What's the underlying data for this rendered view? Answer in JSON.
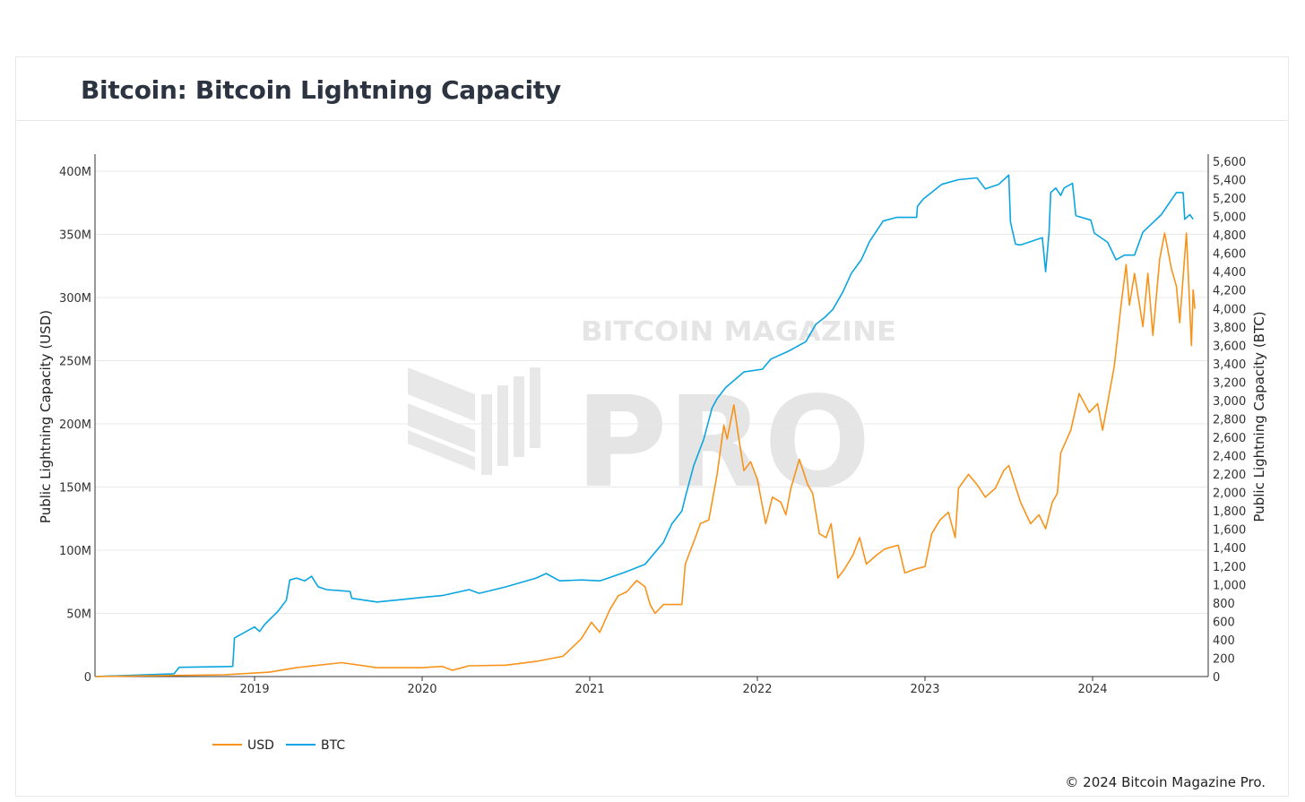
{
  "header": {
    "title": "Bitcoin: Bitcoin Lightning Capacity"
  },
  "footer": {
    "copyright": "© 2024 Bitcoin Magazine Pro."
  },
  "watermark": {
    "line1": "BITCOIN MAGAZINE",
    "line2": "PRO"
  },
  "colors": {
    "usd": "#f7931a",
    "btc": "#0aa5e0",
    "grid": "#e8e8e8"
  },
  "chart_data": {
    "type": "line",
    "title": "Bitcoin: Bitcoin Lightning Capacity",
    "xlabel": "",
    "ylabel": "Public Lightning Capacity (USD)",
    "y2label": "Public Lightning Capacity (BTC)",
    "xlim": [
      2018.05,
      2024.62
    ],
    "ylim": [
      0,
      410
    ],
    "y2lim": [
      0,
      5600
    ],
    "x_ticks": [
      "2019",
      "2020",
      "2021",
      "2022",
      "2023",
      "2024"
    ],
    "y_ticks": [
      "0",
      "50M",
      "100M",
      "150M",
      "200M",
      "250M",
      "300M",
      "350M",
      "400M"
    ],
    "y2_ticks": [
      "0",
      "200",
      "400",
      "600",
      "800",
      "1,000",
      "1,200",
      "1,400",
      "1,600",
      "1,800",
      "2,000",
      "2,200",
      "2,400",
      "2,600",
      "2,800",
      "3,000",
      "3,200",
      "3,400",
      "3,600",
      "3,800",
      "4,000",
      "4,200",
      "4,400",
      "4,600",
      "4,800",
      "5,000",
      "5,200",
      "5,400",
      "5,600"
    ],
    "grid": true,
    "legend_position": "bottom-left",
    "series": [
      {
        "name": "USD",
        "axis": "left",
        "unit": "millions USD",
        "points": [
          [
            2018.05,
            0
          ],
          [
            2018.82,
            1.4
          ],
          [
            2019.09,
            3.5
          ],
          [
            2019.25,
            7
          ],
          [
            2019.52,
            11
          ],
          [
            2019.73,
            7
          ],
          [
            2020.0,
            7
          ],
          [
            2020.12,
            8
          ],
          [
            2020.18,
            5
          ],
          [
            2020.28,
            8.5
          ],
          [
            2020.5,
            9
          ],
          [
            2020.68,
            12
          ],
          [
            2020.84,
            16
          ],
          [
            2020.95,
            30
          ],
          [
            2021.01,
            43
          ],
          [
            2021.06,
            35
          ],
          [
            2021.12,
            53
          ],
          [
            2021.17,
            64
          ],
          [
            2021.22,
            67
          ],
          [
            2021.28,
            76
          ],
          [
            2021.33,
            71
          ],
          [
            2021.36,
            57
          ],
          [
            2021.39,
            50
          ],
          [
            2021.44,
            57
          ],
          [
            2021.55,
            57
          ],
          [
            2021.57,
            89
          ],
          [
            2021.63,
            110
          ],
          [
            2021.66,
            121
          ],
          [
            2021.71,
            124
          ],
          [
            2021.76,
            160
          ],
          [
            2021.8,
            199
          ],
          [
            2021.82,
            188
          ],
          [
            2021.86,
            215
          ],
          [
            2021.89,
            188
          ],
          [
            2021.92,
            163
          ],
          [
            2021.96,
            170
          ],
          [
            2022.0,
            156
          ],
          [
            2022.05,
            121
          ],
          [
            2022.09,
            142
          ],
          [
            2022.14,
            138
          ],
          [
            2022.17,
            128
          ],
          [
            2022.2,
            149
          ],
          [
            2022.25,
            172
          ],
          [
            2022.3,
            152
          ],
          [
            2022.33,
            145
          ],
          [
            2022.37,
            113
          ],
          [
            2022.41,
            110
          ],
          [
            2022.44,
            121
          ],
          [
            2022.48,
            78
          ],
          [
            2022.52,
            85
          ],
          [
            2022.57,
            96
          ],
          [
            2022.61,
            110
          ],
          [
            2022.65,
            89
          ],
          [
            2022.71,
            96
          ],
          [
            2022.76,
            101
          ],
          [
            2022.84,
            104
          ],
          [
            2022.88,
            82
          ],
          [
            2022.94,
            85
          ],
          [
            2023.0,
            87
          ],
          [
            2023.04,
            113
          ],
          [
            2023.09,
            124
          ],
          [
            2023.14,
            130
          ],
          [
            2023.18,
            110
          ],
          [
            2023.2,
            149
          ],
          [
            2023.26,
            160
          ],
          [
            2023.31,
            152
          ],
          [
            2023.36,
            142
          ],
          [
            2023.42,
            149
          ],
          [
            2023.47,
            163
          ],
          [
            2023.5,
            167
          ],
          [
            2023.57,
            138
          ],
          [
            2023.63,
            121
          ],
          [
            2023.68,
            128
          ],
          [
            2023.72,
            117
          ],
          [
            2023.76,
            138
          ],
          [
            2023.79,
            145
          ],
          [
            2023.81,
            177
          ],
          [
            2023.87,
            195
          ],
          [
            2023.92,
            224
          ],
          [
            2023.98,
            209
          ],
          [
            2024.03,
            216
          ],
          [
            2024.06,
            195
          ],
          [
            2024.1,
            224
          ],
          [
            2024.13,
            246
          ],
          [
            2024.17,
            294
          ],
          [
            2024.2,
            326
          ],
          [
            2024.22,
            294
          ],
          [
            2024.25,
            319
          ],
          [
            2024.28,
            294
          ],
          [
            2024.3,
            277
          ],
          [
            2024.33,
            319
          ],
          [
            2024.36,
            270
          ],
          [
            2024.4,
            330
          ],
          [
            2024.43,
            351
          ],
          [
            2024.47,
            323
          ],
          [
            2024.5,
            309
          ],
          [
            2024.52,
            280
          ],
          [
            2024.56,
            351
          ],
          [
            2024.59,
            262
          ],
          [
            2024.6,
            306
          ],
          [
            2024.61,
            291
          ]
        ]
      },
      {
        "name": "BTC",
        "axis": "right",
        "unit": "BTC",
        "points": [
          [
            2018.05,
            0
          ],
          [
            2018.52,
            30
          ],
          [
            2018.55,
            100
          ],
          [
            2018.87,
            110
          ],
          [
            2018.88,
            420
          ],
          [
            2019.0,
            540
          ],
          [
            2019.03,
            490
          ],
          [
            2019.06,
            565
          ],
          [
            2019.14,
            710
          ],
          [
            2019.19,
            830
          ],
          [
            2019.21,
            1050
          ],
          [
            2019.25,
            1070
          ],
          [
            2019.3,
            1040
          ],
          [
            2019.34,
            1090
          ],
          [
            2019.38,
            975
          ],
          [
            2019.43,
            945
          ],
          [
            2019.57,
            925
          ],
          [
            2019.58,
            850
          ],
          [
            2019.73,
            810
          ],
          [
            2019.84,
            830
          ],
          [
            2020.0,
            860
          ],
          [
            2020.12,
            880
          ],
          [
            2020.28,
            945
          ],
          [
            2020.34,
            905
          ],
          [
            2020.5,
            975
          ],
          [
            2020.68,
            1070
          ],
          [
            2020.74,
            1120
          ],
          [
            2020.82,
            1040
          ],
          [
            2020.95,
            1050
          ],
          [
            2021.06,
            1040
          ],
          [
            2021.11,
            1070
          ],
          [
            2021.22,
            1140
          ],
          [
            2021.33,
            1220
          ],
          [
            2021.44,
            1460
          ],
          [
            2021.49,
            1660
          ],
          [
            2021.55,
            1800
          ],
          [
            2021.57,
            1950
          ],
          [
            2021.62,
            2290
          ],
          [
            2021.68,
            2580
          ],
          [
            2021.73,
            2920
          ],
          [
            2021.76,
            3020
          ],
          [
            2021.81,
            3140
          ],
          [
            2021.92,
            3310
          ],
          [
            2022.03,
            3340
          ],
          [
            2022.08,
            3450
          ],
          [
            2022.19,
            3540
          ],
          [
            2022.29,
            3640
          ],
          [
            2022.35,
            3830
          ],
          [
            2022.4,
            3900
          ],
          [
            2022.45,
            3990
          ],
          [
            2022.51,
            4180
          ],
          [
            2022.56,
            4380
          ],
          [
            2022.62,
            4530
          ],
          [
            2022.67,
            4730
          ],
          [
            2022.75,
            4950
          ],
          [
            2022.83,
            4990
          ],
          [
            2022.95,
            4990
          ],
          [
            2022.955,
            5110
          ],
          [
            2022.99,
            5190
          ],
          [
            2023.1,
            5350
          ],
          [
            2023.2,
            5400
          ],
          [
            2023.31,
            5420
          ],
          [
            2023.36,
            5300
          ],
          [
            2023.44,
            5350
          ],
          [
            2023.5,
            5450
          ],
          [
            2023.51,
            4940
          ],
          [
            2023.54,
            4700
          ],
          [
            2023.57,
            4690
          ],
          [
            2023.7,
            4770
          ],
          [
            2023.72,
            4400
          ],
          [
            2023.74,
            4820
          ],
          [
            2023.75,
            5260
          ],
          [
            2023.78,
            5310
          ],
          [
            2023.81,
            5230
          ],
          [
            2023.83,
            5310
          ],
          [
            2023.88,
            5360
          ],
          [
            2023.9,
            5010
          ],
          [
            2023.99,
            4960
          ],
          [
            2024.01,
            4820
          ],
          [
            2024.09,
            4720
          ],
          [
            2024.14,
            4530
          ],
          [
            2024.19,
            4580
          ],
          [
            2024.25,
            4580
          ],
          [
            2024.3,
            4830
          ],
          [
            2024.41,
            5020
          ],
          [
            2024.5,
            5260
          ],
          [
            2024.54,
            5260
          ],
          [
            2024.55,
            4970
          ],
          [
            2024.58,
            5020
          ],
          [
            2024.6,
            4970
          ]
        ]
      }
    ]
  }
}
